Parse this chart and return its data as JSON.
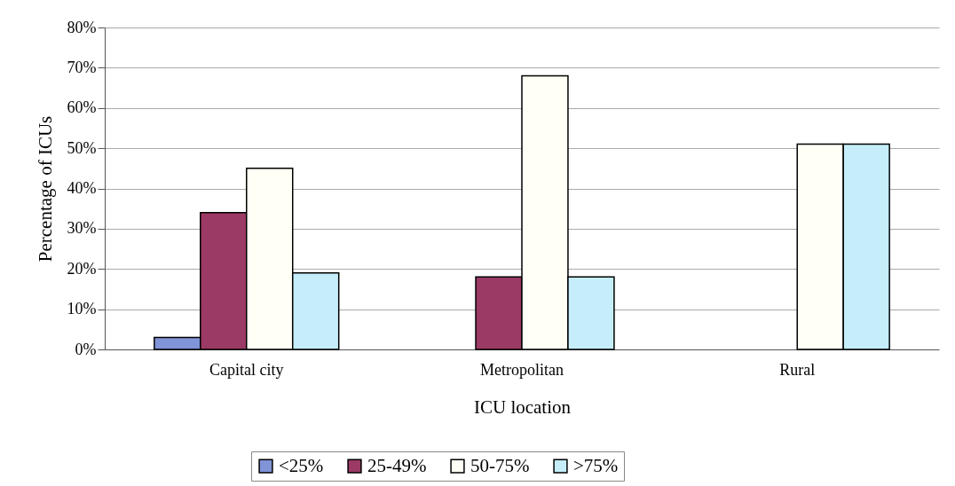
{
  "chart_data": {
    "type": "bar",
    "xlabel": "ICU location",
    "ylabel": "Percentage of ICUs",
    "categories": [
      "Capital city",
      "Metropolitan",
      "Rural"
    ],
    "series": [
      {
        "name": "<25%",
        "color": "#8094d8",
        "values": [
          3,
          null,
          null
        ]
      },
      {
        "name": "25-49%",
        "color": "#9b3a64",
        "values": [
          34,
          18,
          null
        ]
      },
      {
        "name": "50-75%",
        "color": "#fffff5",
        "values": [
          45,
          68,
          51
        ]
      },
      {
        "name": ">75%",
        "color": "#c5eefa",
        "values": [
          19,
          18,
          51
        ]
      }
    ],
    "ylim": [
      0,
      80
    ],
    "yticks": [
      {
        "value": 0,
        "label": "0%"
      },
      {
        "value": 10,
        "label": "10%"
      },
      {
        "value": 20,
        "label": "20%"
      },
      {
        "value": 30,
        "label": "30%"
      },
      {
        "value": 40,
        "label": "40%"
      },
      {
        "value": 50,
        "label": "50%"
      },
      {
        "value": 60,
        "label": "60%"
      },
      {
        "value": 70,
        "label": "70%"
      },
      {
        "value": 80,
        "label": "80%"
      }
    ],
    "grid": "y",
    "legend": "bottom"
  }
}
